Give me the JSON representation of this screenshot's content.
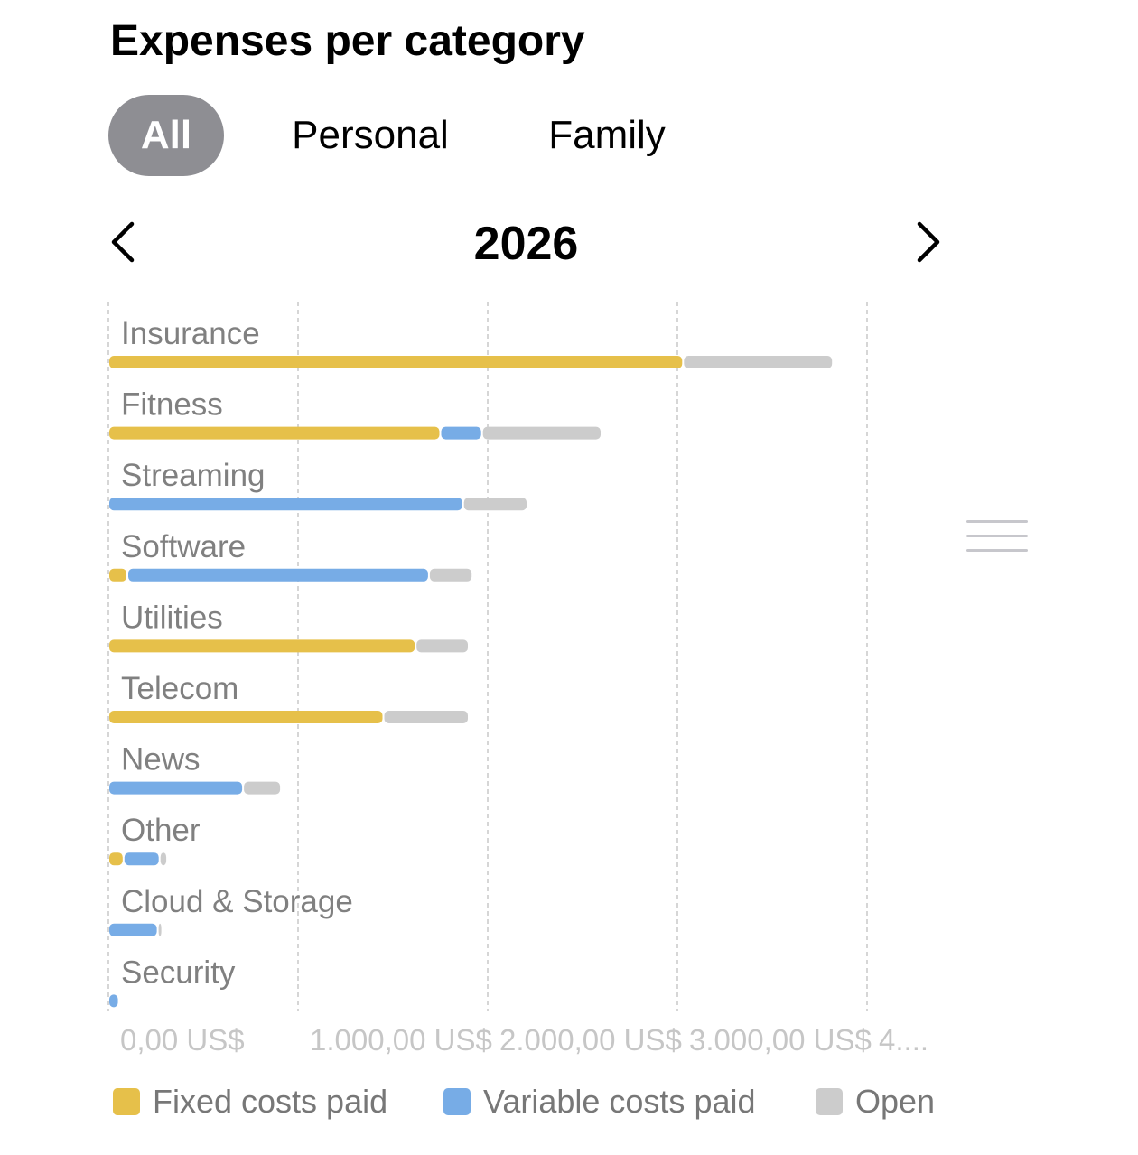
{
  "title": "Expenses per category",
  "filters": [
    {
      "label": "All",
      "active": true
    },
    {
      "label": "Personal",
      "active": false
    },
    {
      "label": "Family",
      "active": false
    }
  ],
  "period": {
    "year": "2026",
    "prev_icon": "chevron-left-icon",
    "next_icon": "chevron-right-icon"
  },
  "colors": {
    "fixed": "#E6C04A",
    "variable": "#77ACE6",
    "open": "#CCCCCC",
    "grid": "#C8C8C8",
    "label": "#808080",
    "tick": "#C6C6C6"
  },
  "legend": [
    {
      "label": "Fixed costs paid",
      "color": "#E6C04A"
    },
    {
      "label": "Variable costs paid",
      "color": "#77ACE6"
    },
    {
      "label": "Open",
      "color": "#CCCCCC"
    }
  ],
  "drag_handle_icon": "drag-handle-icon",
  "chart_data": {
    "type": "bar",
    "orientation": "horizontal",
    "stacked": true,
    "categories": [
      "Insurance",
      "Fitness",
      "Streaming",
      "Software",
      "Utilities",
      "Telecom",
      "News",
      "Other",
      "Cloud & Storage",
      "Security"
    ],
    "series": [
      {
        "name": "Fixed costs paid",
        "values": [
          3030,
          1750,
          0,
          100,
          1620,
          1450,
          0,
          80,
          0,
          0
        ]
      },
      {
        "name": "Variable costs paid",
        "values": [
          0,
          220,
          1870,
          1590,
          0,
          0,
          710,
          190,
          260,
          55
        ]
      },
      {
        "name": "Open",
        "values": [
          790,
          630,
          340,
          230,
          280,
          450,
          200,
          40,
          5,
          0
        ]
      }
    ],
    "x_ticks": [
      "0,00 US$",
      "1.000,00 US$",
      "2.000,00 US$",
      "3.000,00 US$",
      "4...."
    ],
    "x_tick_values": [
      0,
      1000,
      2000,
      3000,
      4000
    ],
    "xlim": [
      0,
      4000
    ],
    "grid": true,
    "legend_position": "bottom"
  }
}
